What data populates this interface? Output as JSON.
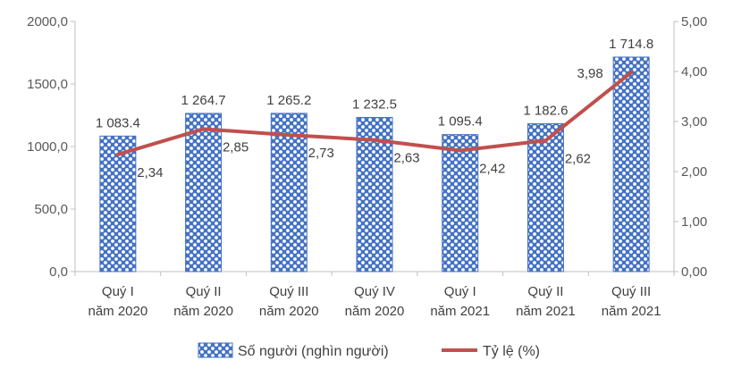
{
  "chart_data": {
    "type": "bar",
    "categories": [
      [
        "Quý I",
        "năm 2020"
      ],
      [
        "Quý II",
        "năm 2020"
      ],
      [
        "Quý III",
        "năm 2020"
      ],
      [
        "Quý IV",
        "năm 2020"
      ],
      [
        "Quý I",
        "năm 2021"
      ],
      [
        "Quý II",
        "năm 2021"
      ],
      [
        "Quý III",
        "năm 2021"
      ]
    ],
    "series": [
      {
        "name": "Số người (nghìn người)",
        "kind": "bar",
        "axis": "left",
        "values": [
          1083.4,
          1264.7,
          1265.2,
          1232.5,
          1095.4,
          1182.6,
          1714.8
        ],
        "labels": [
          "1 083.4",
          "1 264.7",
          "1 265.2",
          "1 232.5",
          "1 095.4",
          "1 182.6",
          "1 714.8"
        ],
        "color": "#4472C4"
      },
      {
        "name": "Tỷ lệ (%)",
        "kind": "line",
        "axis": "right",
        "values": [
          2.34,
          2.85,
          2.73,
          2.63,
          2.42,
          2.62,
          3.98
        ],
        "labels": [
          "2,34",
          "2,85",
          "2,73",
          "2,63",
          "2,42",
          "2,62",
          "3,98"
        ],
        "color": "#C0504D"
      }
    ],
    "y_left": {
      "range": [
        0,
        2000
      ],
      "ticks": [
        0,
        500,
        1000,
        1500,
        2000
      ],
      "tick_labels": [
        "0,0",
        "500,0",
        "1000,0",
        "1500,0",
        "2000,0"
      ]
    },
    "y_right": {
      "range": [
        0,
        5
      ],
      "ticks": [
        0,
        1,
        2,
        3,
        4,
        5
      ],
      "tick_labels": [
        "0,00",
        "1,00",
        "2,00",
        "3,00",
        "4,00",
        "5,00"
      ]
    },
    "grid": false,
    "legend_position": "bottom"
  }
}
